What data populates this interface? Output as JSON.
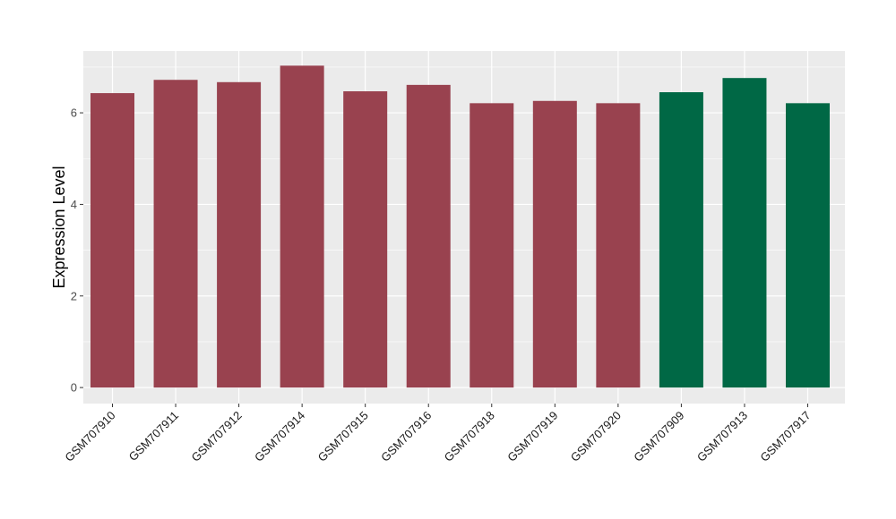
{
  "chart_data": {
    "type": "bar",
    "title": "",
    "xlabel": "",
    "ylabel": "Expression Level",
    "ylim": [
      -0.35,
      7.35
    ],
    "yticks": [
      0,
      2,
      4,
      6
    ],
    "grid": true,
    "categories": [
      "GSM707910",
      "GSM707911",
      "GSM707912",
      "GSM707914",
      "GSM707915",
      "GSM707916",
      "GSM707918",
      "GSM707919",
      "GSM707920",
      "GSM707909",
      "GSM707913",
      "GSM707917"
    ],
    "values": [
      6.43,
      6.72,
      6.67,
      7.03,
      6.47,
      6.61,
      6.21,
      6.26,
      6.21,
      6.45,
      6.76,
      6.21
    ],
    "bar_colors": [
      "#99424F",
      "#99424F",
      "#99424F",
      "#99424F",
      "#99424F",
      "#99424F",
      "#99424F",
      "#99424F",
      "#99424F",
      "#006845",
      "#006845",
      "#006845"
    ],
    "panel_background": "#EBEBEB",
    "grid_color": "#FFFFFF"
  }
}
